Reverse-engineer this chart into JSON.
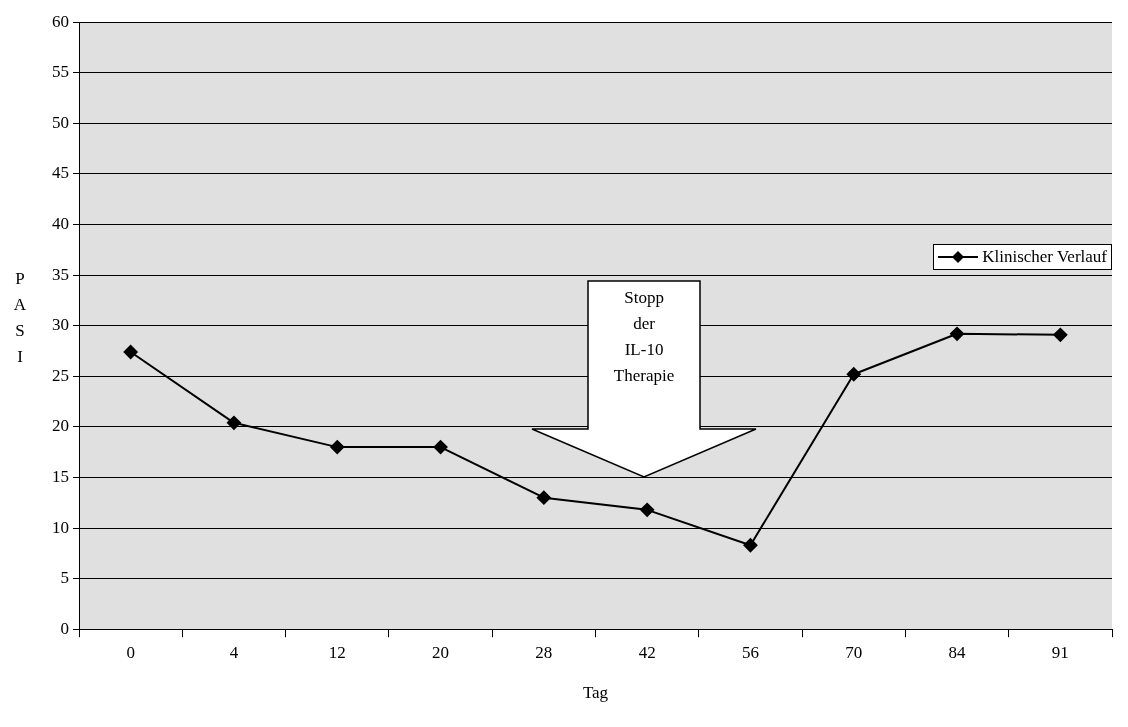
{
  "chart_data": {
    "type": "line",
    "xlabel": "Tag",
    "ylabel": "PASI",
    "categories": [
      "0",
      "4",
      "12",
      "20",
      "28",
      "42",
      "56",
      "70",
      "84",
      "91"
    ],
    "series": [
      {
        "name": "Klinischer Verlauf",
        "color": "#000000",
        "values": [
          27.4,
          20.4,
          18,
          18,
          13,
          11.8,
          8.3,
          25.2,
          29.2,
          29.1
        ]
      }
    ],
    "ylim": [
      0,
      60
    ],
    "yticks": [
      0,
      5,
      10,
      15,
      20,
      25,
      30,
      35,
      40,
      45,
      50,
      55,
      60
    ],
    "grid": "y",
    "legend": "right",
    "marker": "diamond",
    "line_style": "solid",
    "annotations": [
      "Stopp der IL-10 Therapie"
    ]
  }
}
